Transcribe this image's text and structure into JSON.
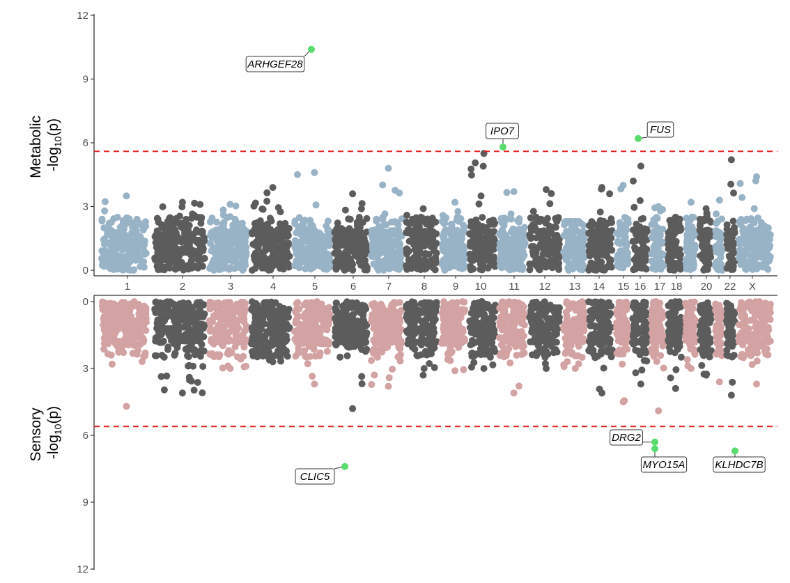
{
  "chart_data": {
    "type": "scatter",
    "subtype": "miami-manhattan",
    "colors": {
      "top_light": "#98b2c6",
      "bottom_light": "#d3a2a2",
      "dark": "#5c5c5c",
      "highlight": "#59dc6d",
      "threshold": "#e42525"
    },
    "chromosomes": [
      "1",
      "2",
      "3",
      "4",
      "5",
      "6",
      "7",
      "8",
      "9",
      "10",
      "11",
      "12",
      "13",
      "14",
      "15",
      "16",
      "17",
      "18",
      "19",
      "20",
      "21",
      "22",
      "X"
    ],
    "chrom_labels": [
      "1",
      "2",
      "3",
      "4",
      "5",
      "6",
      "7",
      "8",
      "9",
      "10",
      "11",
      "12",
      "13",
      "14",
      "15",
      "16",
      "17",
      "18",
      "",
      "20",
      "",
      "22",
      "X"
    ],
    "panels": [
      {
        "name": "Metabolic",
        "ylabel_line1": "Metabolic",
        "ylabel_base": "-log",
        "ylabel_sub": "10",
        "ylabel_end": "(p)",
        "yticks": [
          "0",
          "3",
          "6",
          "9",
          "12"
        ],
        "ylim": [
          0,
          12
        ],
        "threshold": 5.6,
        "direction": "up",
        "peaks": [
          3.5,
          3.2,
          3.1,
          3.9,
          4.6,
          3.6,
          4.8,
          2.9,
          3.2,
          5.5,
          3.7,
          3.8,
          2.3,
          3.9,
          4.0,
          4.9,
          3.0,
          2.5,
          3.2,
          2.9,
          3.3,
          5.2,
          4.4
        ],
        "highlights": [
          {
            "gene": "ARHGEF28",
            "chrom": "5",
            "y": 10.4
          },
          {
            "gene": "IPO7",
            "chrom": "11",
            "y": 5.8
          },
          {
            "gene": "FUS",
            "chrom": "16",
            "y": 6.2
          }
        ]
      },
      {
        "name": "Sensory",
        "ylabel_line1": "Sensory",
        "ylabel_base": "-log",
        "ylabel_sub": "10",
        "ylabel_end": "(p)",
        "yticks": [
          "0",
          "3",
          "6",
          "9",
          "12"
        ],
        "ylim": [
          0,
          12
        ],
        "threshold": 5.6,
        "direction": "down",
        "peaks": [
          4.7,
          4.1,
          3.0,
          2.7,
          3.7,
          4.8,
          3.8,
          3.3,
          3.1,
          3.0,
          4.1,
          3.0,
          3.0,
          4.1,
          4.5,
          3.7,
          4.9,
          3.9,
          3.0,
          3.3,
          3.6,
          4.2,
          3.7
        ],
        "highlights": [
          {
            "gene": "CLIC5",
            "chrom": "6",
            "y": 7.4
          },
          {
            "gene": "DRG2",
            "chrom": "17",
            "y": 6.3
          },
          {
            "gene": "MYO15A",
            "chrom": "17",
            "y": 6.6
          },
          {
            "gene": "KLHDC7B",
            "chrom": "22",
            "y": 6.7
          }
        ]
      }
    ]
  }
}
